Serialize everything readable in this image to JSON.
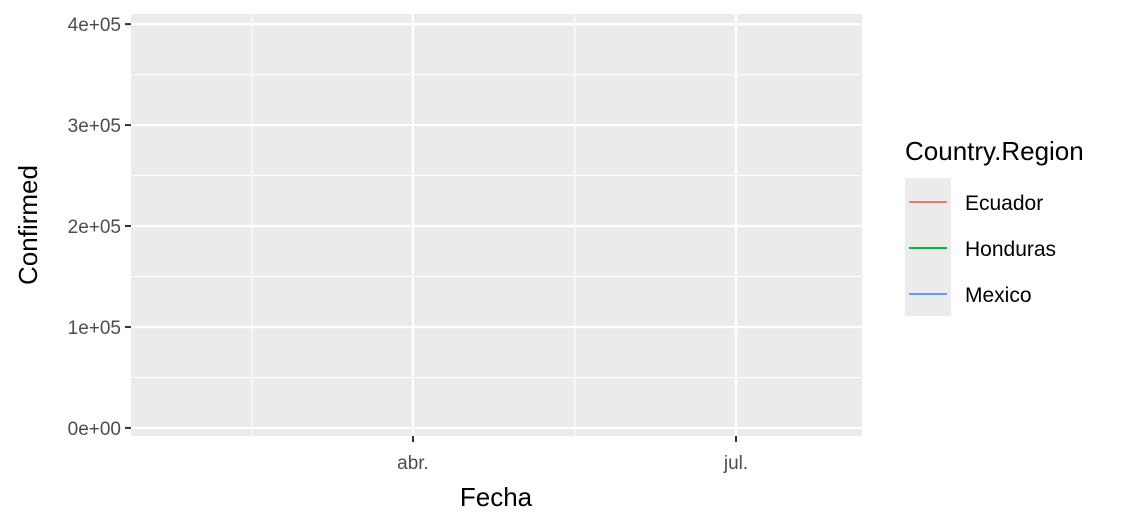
{
  "chart_data": {
    "type": "line",
    "title": "",
    "xlabel": "Fecha",
    "ylabel": "Confirmed",
    "ylim": [
      -8000,
      410000
    ],
    "y_ticks": [
      0,
      100000,
      200000,
      300000,
      400000
    ],
    "y_tick_labels": [
      "0e+00",
      "1e+05",
      "2e+05",
      "3e+05",
      "4e+05"
    ],
    "x_ticks": [
      "abr.",
      "jul."
    ],
    "legend_title": "Country.Region",
    "legend_position": "right",
    "grid": true,
    "series": [
      {
        "name": "Ecuador",
        "color": "#F8766D",
        "values": []
      },
      {
        "name": "Honduras",
        "color": "#00BA38",
        "values": []
      },
      {
        "name": "Mexico",
        "color": "#619CFF",
        "values": []
      }
    ],
    "colors": {
      "panel_background": "#EBEBEB",
      "grid": "#FFFFFF",
      "tick_text": "#4D4D4D",
      "legend_key_background": "#EBEBEB"
    }
  }
}
